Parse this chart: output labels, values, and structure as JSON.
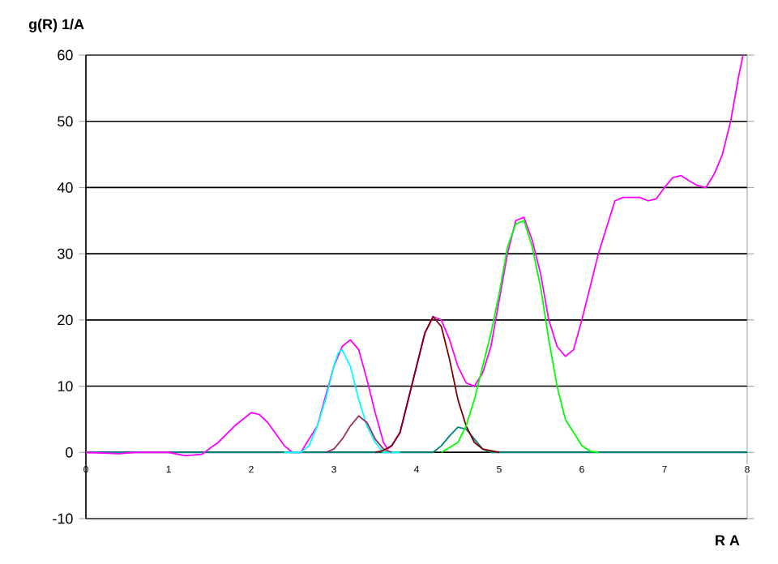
{
  "chart_data": {
    "type": "line",
    "xlabel": "R  A",
    "ylabel": "g(R)  1/A",
    "xlim": [
      0,
      8
    ],
    "ylim": [
      -10,
      60
    ],
    "xticks": [
      0,
      1,
      2,
      3,
      4,
      5,
      6,
      7,
      8
    ],
    "yticks": [
      -10,
      0,
      10,
      20,
      30,
      40,
      50,
      60
    ],
    "grid": "y",
    "marker": "none",
    "line_style": "solid",
    "series": [
      {
        "color": "#008080",
        "x": [
          0,
          1,
          2,
          3,
          4,
          4.2,
          4.3,
          4.4,
          4.5,
          4.6,
          4.7,
          4.8,
          4.9,
          6,
          7,
          8
        ],
        "values": [
          0,
          0,
          0,
          0,
          0,
          0,
          1,
          2.5,
          3.8,
          3.5,
          2,
          0.5,
          0,
          0,
          0,
          0
        ]
      },
      {
        "color": "#ff00ff",
        "x": [
          0,
          0.4,
          0.6,
          1.0,
          1.2,
          1.4,
          1.6,
          1.8,
          2.0,
          2.1,
          2.2,
          2.4,
          2.5,
          2.6,
          2.8,
          3.0,
          3.1,
          3.2,
          3.3,
          3.4,
          3.5,
          3.6,
          3.65,
          3.7,
          3.8,
          3.9,
          4.0,
          4.1,
          4.2,
          4.3,
          4.4,
          4.5,
          4.6,
          4.7,
          4.8,
          4.9,
          5.0,
          5.1,
          5.2,
          5.3,
          5.4,
          5.5,
          5.6,
          5.7,
          5.8,
          5.9,
          6.0,
          6.1,
          6.2,
          6.3,
          6.4,
          6.5,
          6.7,
          6.8,
          6.9,
          7.0,
          7.1,
          7.2,
          7.3,
          7.4,
          7.5,
          7.6,
          7.7,
          7.8,
          7.9,
          7.95
        ],
        "values": [
          0,
          -0.2,
          0,
          0,
          -0.5,
          -0.3,
          1.5,
          4,
          6,
          5.7,
          4.5,
          1,
          0,
          0,
          4,
          13,
          16,
          17,
          15.5,
          11,
          6,
          1.5,
          0.5,
          1,
          3,
          8,
          13,
          18,
          20.5,
          20,
          17,
          13,
          10.5,
          10,
          12,
          16,
          23,
          30,
          35,
          35.5,
          32,
          27,
          20,
          16,
          14.5,
          15.5,
          20,
          25,
          30,
          34,
          38,
          38.5,
          38.5,
          38,
          38.3,
          40,
          41.5,
          41.8,
          41,
          40.3,
          40,
          42,
          45,
          50,
          57,
          60
        ]
      },
      {
        "color": "#00ffff",
        "x": [
          2.4,
          2.6,
          2.7,
          2.8,
          2.9,
          3.0,
          3.05,
          3.1,
          3.2,
          3.3,
          3.4,
          3.5,
          3.6,
          3.8
        ],
        "values": [
          0,
          0,
          1,
          4,
          8,
          13,
          15,
          15.5,
          13,
          8,
          4,
          1.5,
          0,
          0
        ]
      },
      {
        "color": "#993366",
        "x": [
          2.9,
          3.0,
          3.1,
          3.2,
          3.3,
          3.4,
          3.5,
          3.6,
          3.7
        ],
        "values": [
          0,
          0.5,
          2,
          4,
          5.5,
          4.5,
          2,
          0.5,
          0
        ]
      },
      {
        "color": "#800000",
        "x": [
          3.5,
          3.6,
          3.7,
          3.8,
          3.9,
          4.0,
          4.1,
          4.2,
          4.3,
          4.4,
          4.5,
          4.6,
          4.7,
          4.8,
          5.0
        ],
        "values": [
          0,
          0.3,
          1,
          3,
          8,
          13,
          18,
          20.5,
          19,
          14,
          8,
          4,
          1.5,
          0.5,
          0
        ]
      },
      {
        "color": "#00ff00",
        "x": [
          4.3,
          4.5,
          4.6,
          4.7,
          4.8,
          4.9,
          5.0,
          5.1,
          5.2,
          5.3,
          5.4,
          5.5,
          5.6,
          5.7,
          5.8,
          5.9,
          6.0,
          6.1,
          6.2
        ],
        "values": [
          0,
          1.5,
          4,
          8,
          13,
          18,
          24,
          31,
          34.5,
          35,
          31,
          25,
          17,
          10,
          5,
          3,
          1,
          0.2,
          0
        ]
      }
    ]
  }
}
